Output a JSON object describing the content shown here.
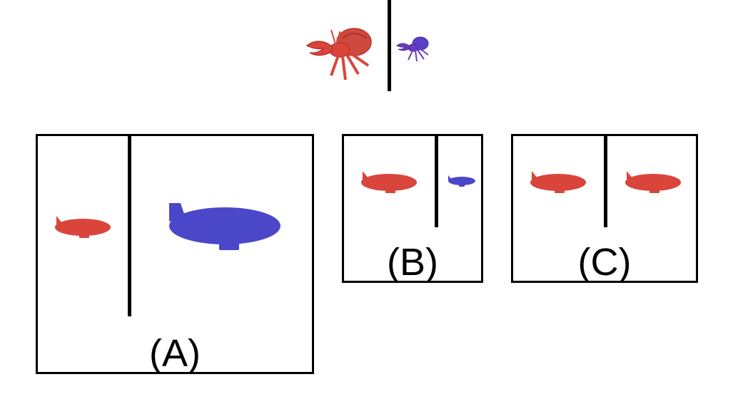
{
  "colors": {
    "red": "#d9453b",
    "red_dark": "#c0352c",
    "blue": "#4a47c8",
    "purple": "#6a3cc0",
    "line": "#000000"
  },
  "reference": {
    "left_icon": "red-hermit-crab-icon",
    "right_icon": "purple-hermit-crab-icon",
    "right_relative_size": "small"
  },
  "options": [
    {
      "label": "(A)",
      "left_icon": "red-blimp-icon",
      "right_icon": "blue-blimp-icon",
      "right_relative_size": "large"
    },
    {
      "label": "(B)",
      "left_icon": "red-blimp-icon",
      "right_icon": "blue-blimp-icon",
      "right_relative_size": "small"
    },
    {
      "label": "(C)",
      "left_icon": "red-blimp-icon",
      "right_icon": "red-blimp-icon",
      "right_relative_size": "same"
    }
  ]
}
